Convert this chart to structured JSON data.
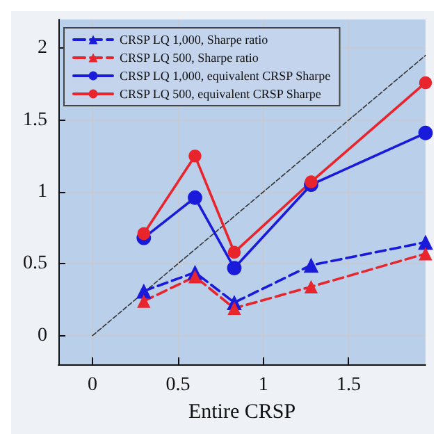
{
  "chart_data": {
    "type": "line",
    "xlabel": "Entire CRSP",
    "xlim": [
      -0.2,
      1.95
    ],
    "xticks": [
      0,
      0.5,
      1,
      1.5
    ],
    "ylim": [
      -0.2,
      2.2
    ],
    "yticks": [
      0,
      0.5,
      1,
      1.5,
      2
    ],
    "grid": true,
    "legend": "top left",
    "series": [
      {
        "name": "CRSP LQ 1,000, Sharpe ratio",
        "color": "#1a1adb",
        "line_style": "dashed",
        "marker": "triangle",
        "x": [
          0.3,
          0.6,
          0.83,
          1.28,
          1.95
        ],
        "values": [
          0.31,
          0.44,
          0.23,
          0.49,
          0.65
        ]
      },
      {
        "name": "CRSP LQ 500, Sharpe ratio",
        "color": "#e8242c",
        "line_style": "dashed",
        "marker": "triangle",
        "x": [
          0.3,
          0.6,
          0.83,
          1.28,
          1.95
        ],
        "values": [
          0.24,
          0.41,
          0.19,
          0.34,
          0.57
        ]
      },
      {
        "name": "CRSP LQ 1,000, equivalent CRSP Sharpe",
        "color": "#1a1adb",
        "line_style": "solid",
        "marker": "circle",
        "x": [
          0.3,
          0.6,
          0.83,
          1.28,
          1.95
        ],
        "values": [
          0.68,
          0.96,
          0.47,
          1.05,
          1.41
        ]
      },
      {
        "name": "CRSP LQ 500, equivalent CRSP Sharpe",
        "color": "#e8242c",
        "line_style": "solid",
        "marker": "circle",
        "x": [
          0.3,
          0.6,
          0.83,
          1.28,
          1.95
        ],
        "values": [
          0.71,
          1.25,
          0.58,
          1.07,
          1.76
        ]
      },
      {
        "color": "#333333",
        "line_style": "dashed",
        "marker": "none",
        "x": [
          0,
          1.95
        ],
        "values": [
          0,
          1.95
        ]
      }
    ]
  }
}
